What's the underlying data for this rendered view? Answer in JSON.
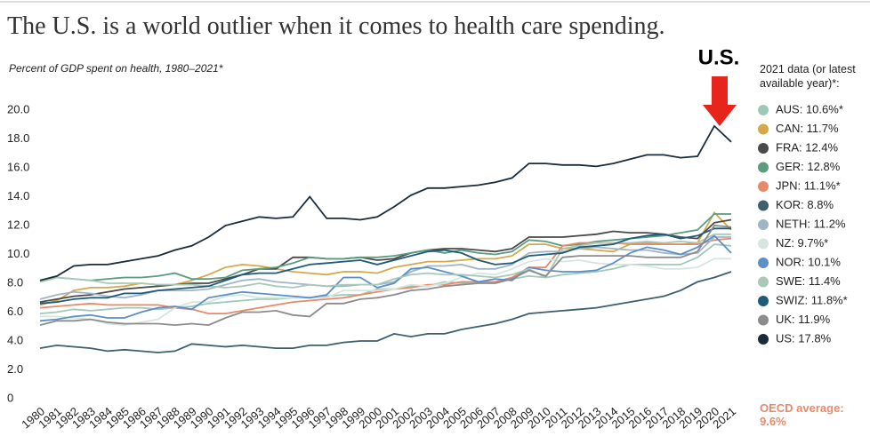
{
  "chart_data": {
    "type": "line",
    "title": "The U.S. is a world outlier when it comes to health care spending.",
    "subtitle": "Percent of GDP spent on health, 1980–2021*",
    "legend_title": "2021 data (or latest available year)*:",
    "annotations": [
      "U.S.",
      "OECD average: 9.6%"
    ],
    "x": [
      1980,
      1981,
      1982,
      1983,
      1984,
      1985,
      1986,
      1987,
      1988,
      1989,
      1990,
      1991,
      1992,
      1993,
      1994,
      1995,
      1996,
      1997,
      1998,
      1999,
      2000,
      2001,
      2002,
      2003,
      2004,
      2005,
      2006,
      2007,
      2008,
      2009,
      2010,
      2011,
      2012,
      2013,
      2014,
      2015,
      2016,
      2017,
      2018,
      2019,
      2020,
      2021
    ],
    "xlim": [
      1980,
      2021
    ],
    "ylim": [
      0,
      20
    ],
    "yticks": [
      0,
      {
        "value": 2,
        "label": "2.0"
      },
      {
        "value": 4,
        "label": "4.0"
      },
      {
        "value": 6,
        "label": "6.0"
      },
      {
        "value": 8,
        "label": "8.0"
      },
      {
        "value": 10,
        "label": "10.0"
      },
      {
        "value": 12,
        "label": "12.0"
      },
      {
        "value": 14,
        "label": "14.0"
      },
      {
        "value": 16,
        "label": "16.0"
      },
      {
        "value": 18,
        "label": "18.0"
      },
      {
        "value": 20,
        "label": "20.0"
      }
    ],
    "grid": false,
    "series": [
      {
        "name": "AUS: 10.6%*",
        "color": "#9ec9b8",
        "values": [
          5.9,
          6.0,
          6.2,
          6.1,
          6.2,
          6.3,
          6.3,
          6.2,
          6.3,
          6.4,
          6.6,
          6.7,
          6.8,
          6.9,
          6.9,
          7.0,
          7.0,
          7.1,
          7.2,
          7.2,
          7.6,
          7.6,
          7.8,
          7.8,
          8.1,
          8.0,
          8.1,
          8.1,
          8.3,
          8.5,
          8.4,
          8.6,
          8.7,
          8.8,
          9.0,
          9.3,
          9.3,
          9.3,
          9.3,
          9.8,
          10.7,
          10.6
        ]
      },
      {
        "name": "CAN: 11.7%",
        "color": "#d4a84b",
        "values": [
          6.5,
          6.8,
          7.5,
          7.7,
          7.7,
          7.8,
          8.0,
          7.9,
          7.9,
          8.2,
          8.6,
          9.1,
          9.3,
          9.2,
          9.0,
          8.8,
          8.7,
          8.6,
          8.8,
          8.8,
          8.7,
          9.1,
          9.3,
          9.5,
          9.5,
          9.6,
          9.7,
          9.7,
          9.9,
          10.7,
          10.7,
          10.4,
          10.4,
          10.3,
          10.2,
          10.7,
          10.8,
          10.7,
          10.7,
          10.8,
          12.9,
          11.7
        ]
      },
      {
        "name": "FRA: 12.4%",
        "color": "#4a4a4a",
        "values": [
          6.7,
          6.9,
          7.1,
          7.2,
          7.4,
          7.6,
          7.7,
          7.8,
          7.9,
          8.0,
          8.0,
          8.3,
          8.6,
          9.0,
          9.0,
          9.8,
          9.8,
          9.7,
          9.7,
          9.8,
          9.6,
          9.7,
          10.1,
          10.3,
          10.4,
          10.4,
          10.3,
          10.2,
          10.4,
          11.2,
          11.2,
          11.2,
          11.3,
          11.4,
          11.6,
          11.5,
          11.5,
          11.4,
          11.2,
          11.1,
          12.2,
          12.4
        ]
      },
      {
        "name": "GER: 12.8%",
        "color": "#5a9c80",
        "values": [
          8.1,
          8.4,
          8.3,
          8.2,
          8.3,
          8.4,
          8.4,
          8.5,
          8.7,
          8.3,
          8.3,
          8.4,
          8.9,
          9.0,
          9.1,
          9.4,
          9.8,
          9.7,
          9.7,
          9.8,
          9.8,
          9.9,
          10.1,
          10.3,
          10.1,
          10.3,
          10.1,
          10.0,
          10.2,
          11.0,
          10.9,
          10.6,
          10.7,
          10.9,
          11.0,
          11.1,
          11.2,
          11.3,
          11.5,
          11.7,
          12.8,
          12.8
        ]
      },
      {
        "name": "JPN: 11.1%*",
        "color": "#e8896a",
        "values": [
          6.3,
          6.4,
          6.5,
          6.6,
          6.5,
          6.5,
          6.5,
          6.5,
          6.3,
          6.2,
          5.9,
          5.9,
          6.1,
          6.3,
          6.5,
          6.7,
          6.8,
          6.9,
          7.0,
          7.2,
          7.4,
          7.6,
          7.7,
          7.9,
          7.9,
          8.1,
          8.1,
          8.1,
          8.4,
          9.1,
          9.1,
          10.6,
          10.8,
          10.8,
          10.8,
          10.7,
          10.7,
          10.7,
          10.7,
          10.7,
          11.0,
          11.1
        ]
      },
      {
        "name": "KOR: 8.8%",
        "color": "#3d5f6e",
        "values": [
          3.5,
          3.7,
          3.6,
          3.5,
          3.3,
          3.4,
          3.3,
          3.2,
          3.3,
          3.8,
          3.7,
          3.6,
          3.7,
          3.6,
          3.5,
          3.5,
          3.7,
          3.7,
          3.9,
          4.0,
          4.0,
          4.5,
          4.3,
          4.5,
          4.5,
          4.8,
          5.0,
          5.2,
          5.5,
          5.9,
          6.0,
          6.1,
          6.2,
          6.3,
          6.5,
          6.7,
          6.9,
          7.1,
          7.5,
          8.1,
          8.4,
          8.8
        ]
      },
      {
        "name": "NETH: 11.2%",
        "color": "#9fb6c7",
        "values": [
          6.9,
          7.2,
          7.4,
          7.3,
          7.1,
          7.0,
          7.2,
          7.5,
          7.5,
          7.5,
          7.6,
          7.9,
          8.2,
          8.3,
          8.1,
          8.0,
          7.9,
          7.8,
          7.8,
          7.9,
          7.9,
          8.1,
          8.8,
          9.2,
          9.2,
          9.3,
          9.0,
          9.0,
          9.3,
          10.1,
          10.2,
          10.2,
          10.4,
          10.5,
          10.4,
          10.3,
          10.3,
          10.1,
          10.0,
          10.1,
          11.2,
          11.2
        ]
      },
      {
        "name": "NZ: 9.7%*",
        "color": "#d6e6df",
        "values": [
          5.7,
          5.7,
          5.6,
          5.5,
          5.2,
          5.1,
          5.3,
          5.5,
          6.3,
          6.7,
          6.7,
          7.1,
          7.2,
          7.0,
          7.0,
          7.0,
          7.0,
          7.0,
          7.5,
          7.5,
          7.5,
          7.6,
          7.9,
          7.8,
          8.0,
          8.4,
          8.7,
          8.6,
          9.0,
          9.5,
          9.7,
          9.5,
          9.6,
          9.4,
          9.3,
          9.3,
          9.2,
          9.0,
          9.0,
          9.1,
          9.7,
          9.7
        ]
      },
      {
        "name": "NOR: 10.1%",
        "color": "#5b8fc9",
        "values": [
          5.4,
          5.5,
          5.7,
          5.8,
          5.6,
          5.6,
          6.0,
          6.3,
          6.4,
          6.2,
          7.0,
          7.2,
          7.4,
          7.3,
          7.2,
          7.1,
          7.0,
          7.2,
          8.4,
          8.4,
          7.7,
          8.0,
          9.0,
          9.1,
          8.8,
          8.5,
          8.1,
          8.3,
          8.2,
          9.1,
          8.9,
          8.8,
          8.8,
          8.9,
          9.4,
          10.1,
          10.5,
          10.3,
          10.0,
          10.5,
          11.3,
          10.1
        ]
      },
      {
        "name": "SWE: 11.4%",
        "color": "#a8c9b8",
        "values": [
          8.1,
          8.4,
          8.3,
          8.2,
          8.0,
          8.0,
          8.0,
          7.9,
          7.9,
          7.9,
          7.8,
          7.7,
          7.8,
          8.0,
          7.8,
          7.7,
          7.9,
          7.8,
          7.9,
          7.9,
          7.9,
          8.3,
          8.6,
          8.7,
          8.6,
          8.6,
          8.5,
          8.4,
          8.6,
          9.0,
          8.4,
          10.4,
          10.6,
          10.8,
          10.8,
          10.8,
          10.9,
          10.8,
          10.9,
          10.8,
          11.4,
          11.4
        ]
      },
      {
        "name": "SWIZ: 11.8%*",
        "color": "#1e5a7a",
        "values": [
          6.6,
          6.7,
          6.9,
          7.0,
          7.0,
          7.3,
          7.3,
          7.5,
          7.6,
          7.7,
          7.8,
          8.2,
          8.6,
          8.7,
          8.7,
          9.0,
          9.3,
          9.4,
          9.5,
          9.6,
          9.3,
          9.6,
          9.9,
          10.2,
          10.3,
          10.1,
          9.6,
          9.3,
          9.4,
          9.9,
          10.0,
          10.1,
          10.5,
          10.6,
          10.7,
          11.1,
          11.3,
          11.4,
          11.1,
          11.3,
          11.8,
          11.8
        ]
      },
      {
        "name": "UK: 11.9%",
        "color": "#8c8c8c",
        "values": [
          5.1,
          5.4,
          5.4,
          5.5,
          5.3,
          5.2,
          5.2,
          5.2,
          5.1,
          5.2,
          5.1,
          5.6,
          6.0,
          6.0,
          6.1,
          5.8,
          5.7,
          6.6,
          6.6,
          6.9,
          7.0,
          7.2,
          7.5,
          7.6,
          7.8,
          7.9,
          8.0,
          8.0,
          8.3,
          8.9,
          8.5,
          9.8,
          9.9,
          9.9,
          9.9,
          9.9,
          9.8,
          9.8,
          9.8,
          10.2,
          12.0,
          11.9
        ]
      },
      {
        "name": "US: 17.8%",
        "color": "#1a2b3c",
        "values": [
          8.2,
          8.5,
          9.2,
          9.3,
          9.3,
          9.5,
          9.7,
          9.9,
          10.3,
          10.6,
          11.2,
          12.0,
          12.3,
          12.6,
          12.5,
          12.6,
          14.0,
          12.5,
          12.5,
          12.4,
          12.6,
          13.3,
          14.1,
          14.6,
          14.6,
          14.7,
          14.8,
          15.0,
          15.3,
          16.3,
          16.3,
          16.2,
          16.2,
          16.1,
          16.3,
          16.6,
          16.9,
          16.9,
          16.7,
          16.8,
          18.9,
          17.8
        ]
      }
    ]
  }
}
